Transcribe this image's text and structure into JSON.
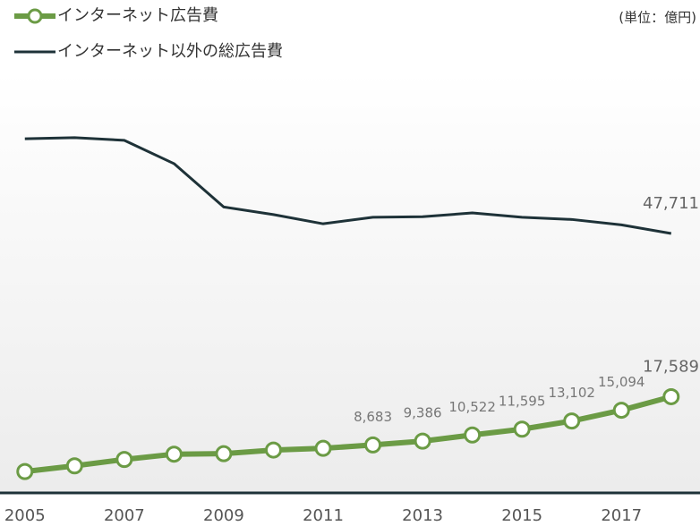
{
  "chart_data": {
    "type": "line",
    "unit_note": "(単位：億円)",
    "x": [
      2005,
      2006,
      2007,
      2008,
      2009,
      2010,
      2011,
      2012,
      2013,
      2014,
      2015,
      2016,
      2017,
      2018
    ],
    "xlim": [
      2004.5,
      2018.58
    ],
    "xticks": [
      2005,
      2007,
      2009,
      2011,
      2013,
      2015,
      2017
    ],
    "ylim": [
      0,
      90800
    ],
    "series": [
      {
        "name": "インターネット広告費",
        "color": "#6b9b45",
        "markers": true,
        "values": [
          3777,
          4826,
          6003,
          6983,
          7069,
          7747,
          8062,
          8683,
          9386,
          10522,
          11595,
          13102,
          15094,
          17589
        ],
        "value_labels": [
          null,
          null,
          null,
          null,
          null,
          null,
          null,
          "8,683",
          "9,386",
          "10,522",
          "11,595",
          "13,102",
          "15,094",
          "17,589"
        ]
      },
      {
        "name": "インターネット以外の総広告費",
        "color": "#1e3238",
        "markers": false,
        "values": [
          65200,
          65400,
          64900,
          60600,
          52600,
          51200,
          49500,
          50700,
          50800,
          51500,
          50700,
          50300,
          49300,
          47711
        ],
        "value_labels": [
          null,
          null,
          null,
          null,
          null,
          null,
          null,
          null,
          null,
          null,
          null,
          null,
          null,
          "47,711"
        ]
      }
    ]
  }
}
